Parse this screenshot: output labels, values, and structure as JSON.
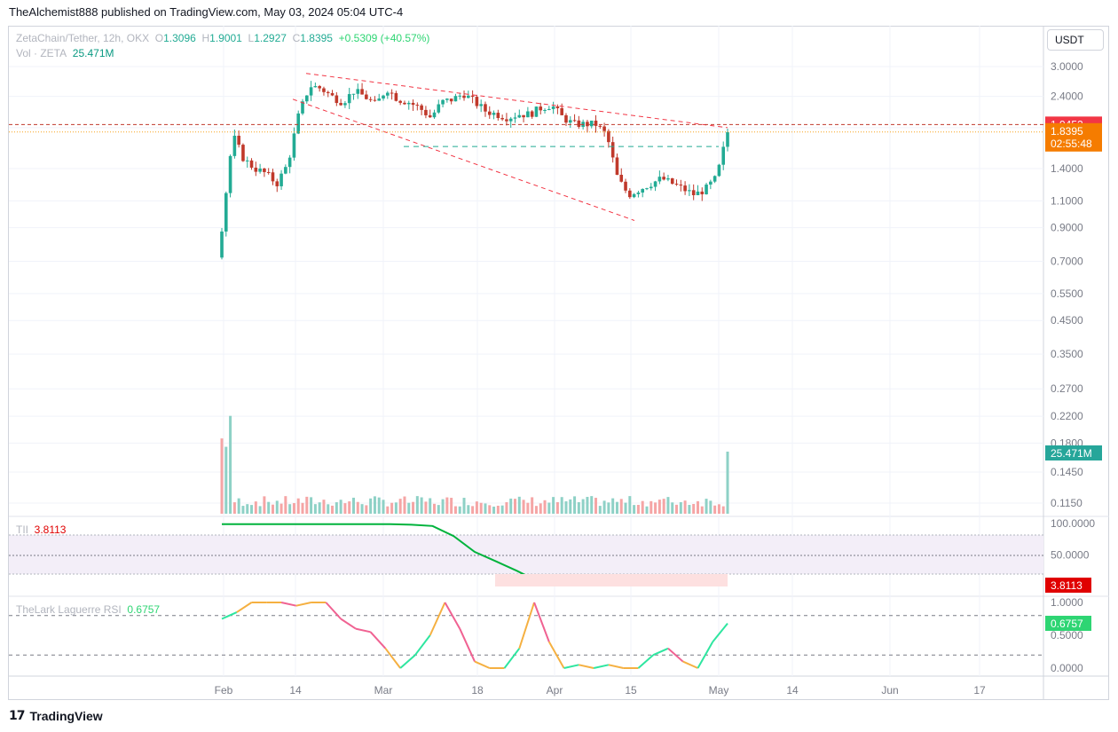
{
  "header": {
    "published_text": "TheAlchemist888 published on TradingView.com, May 03, 2024 05:04 UTC-4"
  },
  "currency_button": "USDT",
  "legend": {
    "symbol": "ZetaChain/Tether, 12h, OKX",
    "o_label": "O",
    "o_value": "1.3096",
    "h_label": "H",
    "h_value": "1.9001",
    "l_label": "L",
    "l_value": "1.2927",
    "c_label": "C",
    "c_value": "1.8395",
    "change": "+0.5309 (+40.57%)",
    "vol_label": "Vol · ZETA",
    "vol_value": "25.471M"
  },
  "tii_legend": {
    "label": "TII",
    "value": "3.8113"
  },
  "rsi_legend": {
    "label": "TheLark Laguerre RSI",
    "value": "0.6757"
  },
  "footer": {
    "brand": "TradingView"
  },
  "colors": {
    "up": "#22ab94",
    "down": "#c0392b",
    "trend": "#f23645",
    "tii_up": "#00b33c",
    "tii_down": "#f44336"
  },
  "chart_data": [
    {
      "type": "candlestick",
      "x_ticks": [
        "Feb",
        "14",
        "Mar",
        "18",
        "Apr",
        "15",
        "May",
        "14",
        "Jun",
        "17"
      ],
      "y_scale": "log",
      "y_ticks": [
        "3.0000",
        "2.4000",
        "1.9000",
        "1.4000",
        "1.1000",
        "0.9000",
        "0.7000",
        "0.5500",
        "0.4500",
        "0.3500",
        "0.2700",
        "0.2200",
        "0.1800",
        "0.1450",
        "0.1150"
      ],
      "price_labels": [
        {
          "value": "1.9452",
          "kind": "horizontal-line"
        },
        {
          "value": "1.8395",
          "kind": "last-price",
          "countdown": "02:55:48"
        },
        {
          "value": "25.471M",
          "kind": "volume"
        }
      ],
      "close_path": [
        [
          "Feb",
          0.9
        ],
        [
          "Feb",
          1.8
        ],
        [
          "Feb",
          1.5
        ],
        [
          "",
          1.4
        ],
        [
          "",
          1.35
        ],
        [
          "",
          1.25
        ],
        [
          "",
          1.45
        ],
        [
          "",
          2.1
        ],
        [
          "14",
          2.6
        ],
        [
          "",
          2.55
        ],
        [
          "",
          2.4
        ],
        [
          "",
          2.3
        ],
        [
          "",
          2.5
        ],
        [
          "",
          2.4
        ],
        [
          "",
          2.25
        ],
        [
          "",
          2.55
        ],
        [
          "",
          2.35
        ],
        [
          "",
          2.3
        ],
        [
          "",
          2.2
        ],
        [
          "Mar",
          2.05
        ],
        [
          "",
          2.3
        ],
        [
          "",
          2.35
        ],
        [
          "",
          2.45
        ],
        [
          "",
          2.3
        ],
        [
          "",
          2.15
        ],
        [
          "",
          2.1
        ],
        [
          "18",
          2.05
        ],
        [
          "",
          2.1
        ],
        [
          "",
          2.1
        ],
        [
          "",
          2.2
        ],
        [
          "",
          2.25
        ],
        [
          "",
          2.05
        ],
        [
          "Apr",
          1.95
        ],
        [
          "",
          1.95
        ],
        [
          "",
          1.95
        ],
        [
          "",
          1.8
        ],
        [
          "",
          1.3
        ],
        [
          "",
          1.15
        ],
        [
          "15",
          1.2
        ],
        [
          "",
          1.25
        ],
        [
          "",
          1.3
        ],
        [
          "",
          1.25
        ],
        [
          "",
          1.2
        ],
        [
          "",
          1.15
        ],
        [
          "",
          1.2
        ],
        [
          "May",
          1.31
        ],
        [
          "May",
          1.84
        ]
      ],
      "annotations": [
        "descending trendline upper",
        "descending trendline lower",
        "horizontal dashed support ~1.65",
        "horizontal dashed line 1.9452"
      ]
    },
    {
      "type": "line",
      "name": "TII",
      "y_ticks": [
        "100.0000",
        "50.0000"
      ],
      "last_value": "3.8113",
      "values": [
        99,
        99,
        99,
        99,
        99,
        99,
        99,
        99,
        99,
        98,
        96,
        80,
        55,
        40,
        25,
        8,
        3,
        3,
        3,
        3,
        3,
        3,
        3,
        3,
        3.8
      ]
    },
    {
      "type": "line",
      "name": "Laguerre RSI",
      "y_ticks": [
        "1.0000",
        "0.5000",
        "0.0000"
      ],
      "last_value": "0.6757",
      "values": [
        0.75,
        0.85,
        1,
        1,
        1,
        0.95,
        1,
        1,
        0.75,
        0.6,
        0.55,
        0.3,
        0,
        0.2,
        0.5,
        1,
        0.6,
        0.1,
        0,
        0,
        0.3,
        1,
        0.4,
        0,
        0.05,
        0,
        0.05,
        0,
        0,
        0.2,
        0.3,
        0.1,
        0,
        0.4,
        0.68
      ]
    }
  ]
}
